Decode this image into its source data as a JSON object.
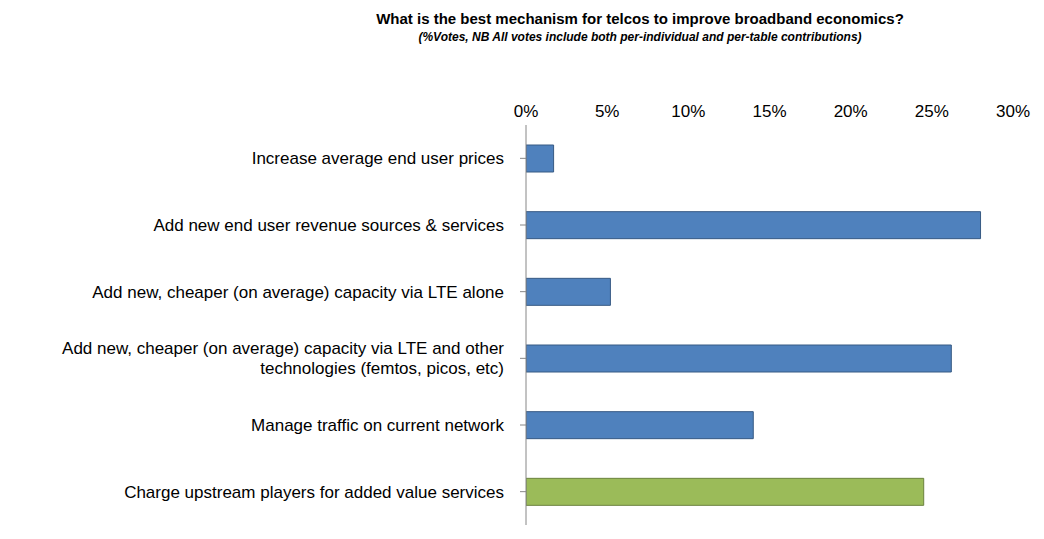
{
  "chart_data": {
    "type": "bar",
    "title": "What is the best mechanism for telcos to improve broadband economics?",
    "subtitle": "(%Votes, NB All votes include both per-individual and per-table contributions)",
    "orientation": "horizontal",
    "categories": [
      "Increase average end user prices",
      "Add new end user revenue sources & services",
      "Add new, cheaper (on average) capacity via LTE alone",
      "Add new, cheaper (on average) capacity via LTE and other technologies (femtos, picos, etc)",
      "Manage traffic on current network",
      "Charge upstream players for added value services"
    ],
    "values": [
      1.7,
      28.0,
      5.2,
      26.2,
      14.0,
      24.5
    ],
    "colors": [
      "#4f81bd",
      "#4f81bd",
      "#4f81bd",
      "#4f81bd",
      "#4f81bd",
      "#9bbb59"
    ],
    "xlim": [
      0,
      30
    ],
    "xticks": [
      {
        "value": 0,
        "label": "0%"
      },
      {
        "value": 5,
        "label": "5%"
      },
      {
        "value": 10,
        "label": "10%"
      },
      {
        "value": 15,
        "label": "15%"
      },
      {
        "value": 20,
        "label": "20%"
      },
      {
        "value": 25,
        "label": "25%"
      },
      {
        "value": 30,
        "label": "30%"
      }
    ],
    "grid": false
  }
}
